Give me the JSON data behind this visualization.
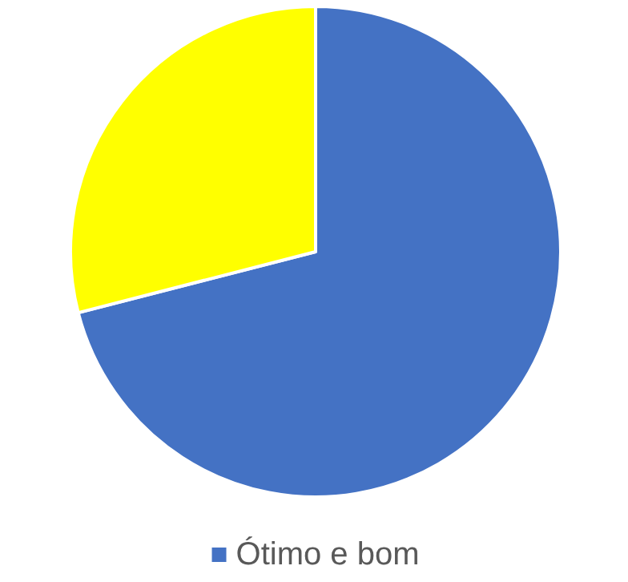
{
  "chart_data": {
    "type": "pie",
    "categories": [
      "Ótimo e bom",
      null
    ],
    "values": [
      71,
      29
    ],
    "colors": [
      "#4472c4",
      "#ffff00"
    ],
    "legend": "bottom"
  }
}
